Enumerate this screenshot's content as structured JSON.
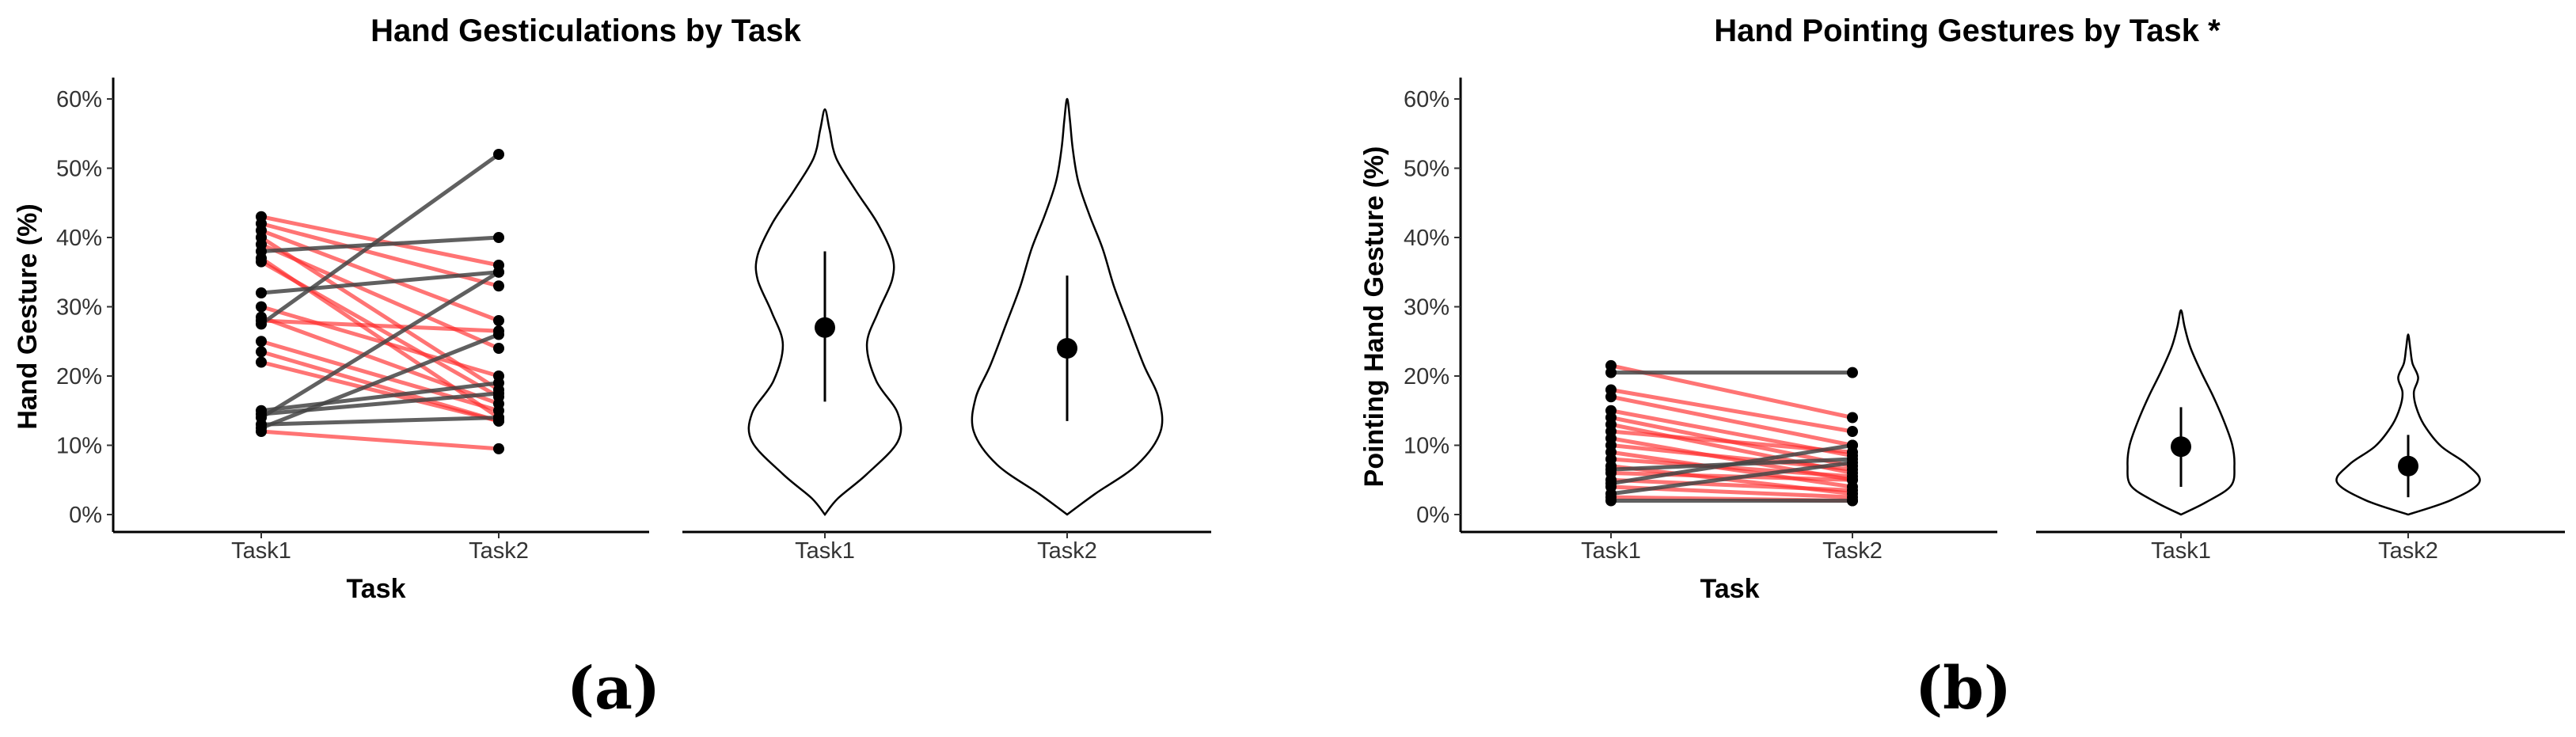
{
  "panels": [
    {
      "label": "(a)",
      "title": "Hand Gesticulations by Task",
      "colors": {
        "decrease": "#ff2a2a",
        "increase": "#444444"
      },
      "chart_data": [
        {
          "type": "line",
          "title": "Hand Gesticulations by Task",
          "xlabel": "Task",
          "ylabel": "Hand Gesture (%)",
          "categories": [
            "Task1",
            "Task2"
          ],
          "ylim": [
            0,
            0.6
          ],
          "yticks": [
            0,
            0.1,
            0.2,
            0.3,
            0.4,
            0.5,
            0.6
          ],
          "ytick_labels": [
            "0%",
            "10%",
            "20%",
            "30%",
            "40%",
            "50%",
            "60%"
          ],
          "pairs": [
            [
              0.43,
              0.36
            ],
            [
              0.42,
              0.33
            ],
            [
              0.41,
              0.28
            ],
            [
              0.4,
              0.18
            ],
            [
              0.39,
              0.24
            ],
            [
              0.38,
              0.4
            ],
            [
              0.37,
              0.14
            ],
            [
              0.365,
              0.17
            ],
            [
              0.32,
              0.35
            ],
            [
              0.3,
              0.2
            ],
            [
              0.285,
              0.16
            ],
            [
              0.28,
              0.265
            ],
            [
              0.275,
              0.52
            ],
            [
              0.25,
              0.15
            ],
            [
              0.235,
              0.135
            ],
            [
              0.22,
              0.135
            ],
            [
              0.15,
              0.19
            ],
            [
              0.145,
              0.175
            ],
            [
              0.14,
              0.35
            ],
            [
              0.13,
              0.14
            ],
            [
              0.125,
              0.26
            ],
            [
              0.12,
              0.095
            ]
          ]
        },
        {
          "type": "violin",
          "categories": [
            "Task1",
            "Task2"
          ],
          "ylim": [
            0,
            0.6
          ],
          "summary": [
            {
              "category": "Task1",
              "center": 0.27,
              "low": 0.163,
              "high": 0.38
            },
            {
              "category": "Task2",
              "center": 0.24,
              "low": 0.135,
              "high": 0.345
            }
          ],
          "range": [
            [
              0.0,
              0.585
            ],
            [
              0.0,
              0.6
            ]
          ]
        }
      ]
    },
    {
      "label": "(b)",
      "title": "Hand Pointing Gestures by Task *",
      "colors": {
        "decrease": "#ff2a2a",
        "increase": "#444444"
      },
      "chart_data": [
        {
          "type": "line",
          "title": "Hand Pointing Gestures by Task *",
          "xlabel": "Task",
          "ylabel": "Pointing Hand Gesture (%)",
          "categories": [
            "Task1",
            "Task2"
          ],
          "ylim": [
            0,
            0.6
          ],
          "yticks": [
            0,
            0.1,
            0.2,
            0.3,
            0.4,
            0.5,
            0.6
          ],
          "ytick_labels": [
            "0%",
            "10%",
            "20%",
            "30%",
            "40%",
            "50%",
            "60%"
          ],
          "pairs": [
            [
              0.215,
              0.14
            ],
            [
              0.205,
              0.205
            ],
            [
              0.18,
              0.12
            ],
            [
              0.17,
              0.1
            ],
            [
              0.15,
              0.085
            ],
            [
              0.14,
              0.07
            ],
            [
              0.13,
              0.06
            ],
            [
              0.12,
              0.09
            ],
            [
              0.11,
              0.05
            ],
            [
              0.1,
              0.065
            ],
            [
              0.09,
              0.04
            ],
            [
              0.08,
              0.055
            ],
            [
              0.07,
              0.03
            ],
            [
              0.065,
              0.08
            ],
            [
              0.06,
              0.05
            ],
            [
              0.05,
              0.035
            ],
            [
              0.045,
              0.1
            ],
            [
              0.04,
              0.025
            ],
            [
              0.03,
              0.075
            ],
            [
              0.025,
              0.02
            ],
            [
              0.02,
              0.02
            ]
          ]
        },
        {
          "type": "violin",
          "categories": [
            "Task1",
            "Task2"
          ],
          "ylim": [
            0,
            0.6
          ],
          "summary": [
            {
              "category": "Task1",
              "center": 0.098,
              "low": 0.04,
              "high": 0.155
            },
            {
              "category": "Task2",
              "center": 0.07,
              "low": 0.025,
              "high": 0.115
            }
          ],
          "range": [
            [
              0.0,
              0.295
            ],
            [
              0.0,
              0.26
            ]
          ]
        }
      ]
    }
  ]
}
